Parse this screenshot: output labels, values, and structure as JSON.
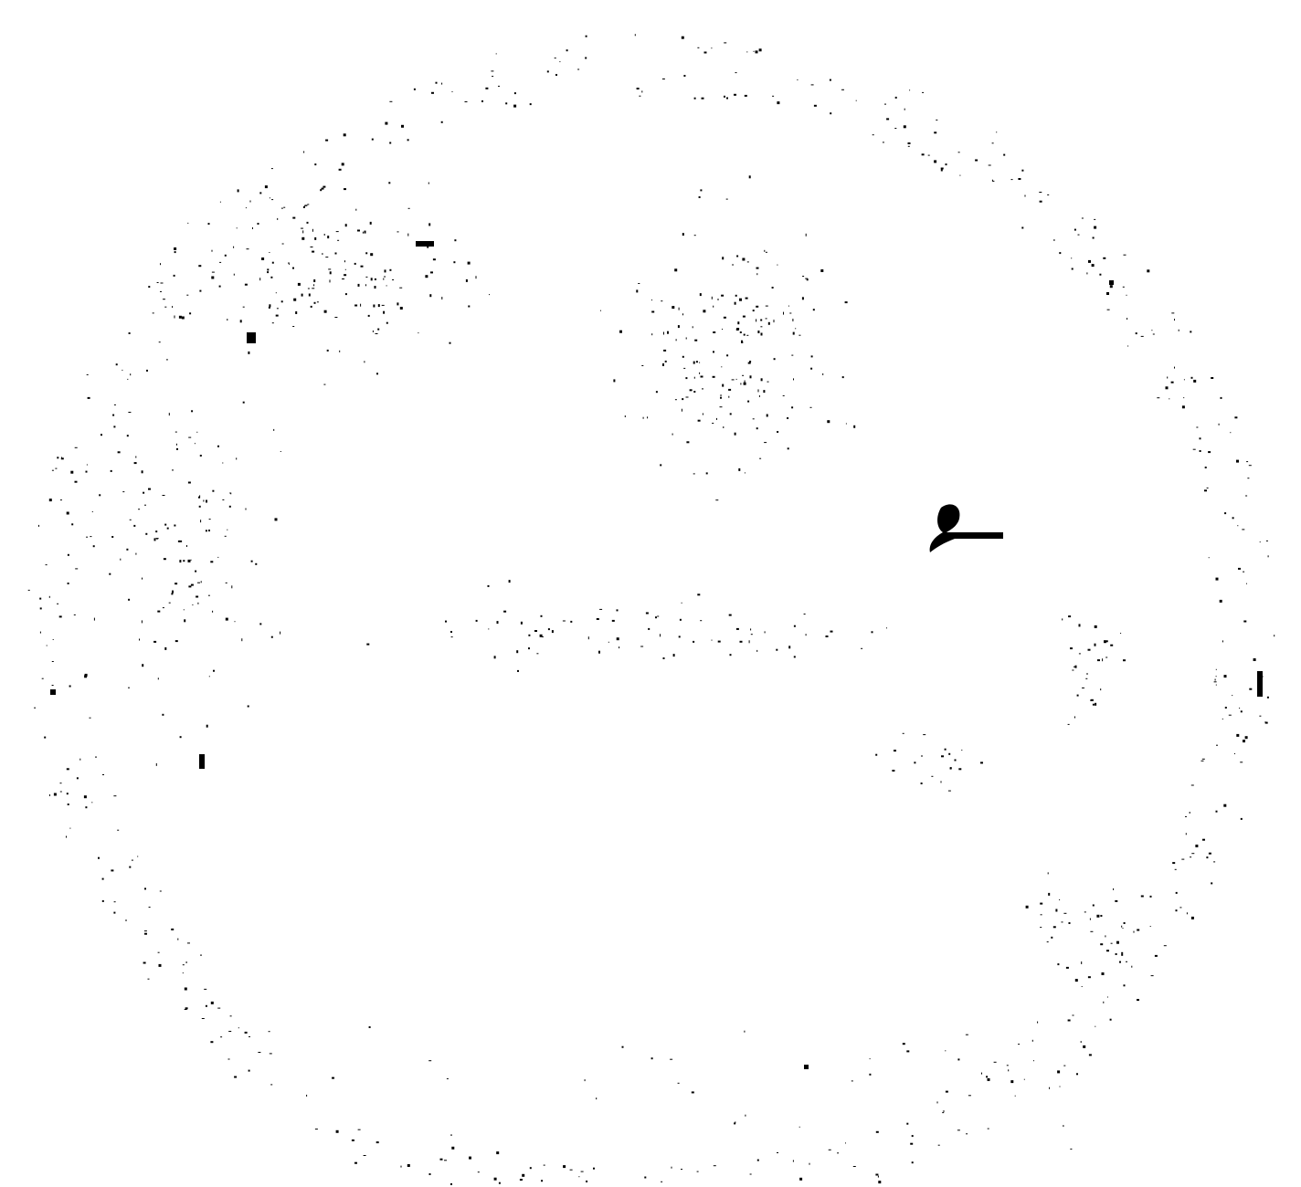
{
  "image": {
    "background_color": "#ffffff",
    "ink_color": "#000000",
    "description_kind": "sparse dotted speckle drawing of a circular outline with a small solid dark glyph right of center"
  }
}
